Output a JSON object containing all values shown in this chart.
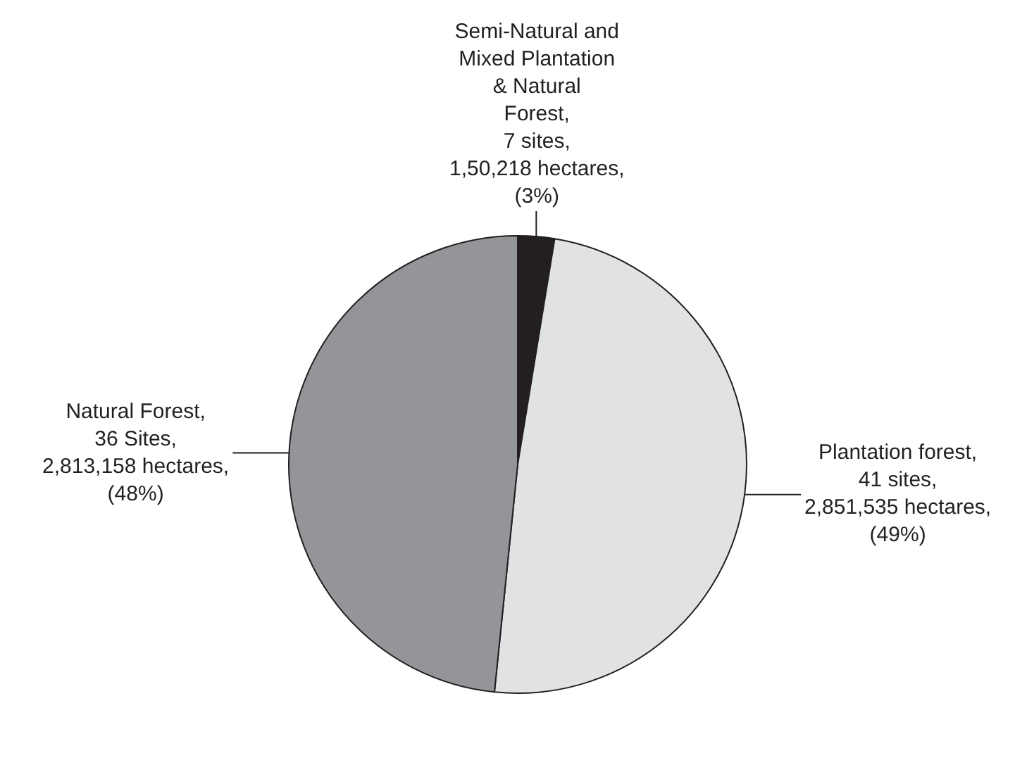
{
  "chart_data": {
    "type": "pie",
    "categories": [
      "Semi-Natural and Mixed Plantation & Natural Forest",
      "Plantation forest",
      "Natural Forest"
    ],
    "values": [
      150218,
      2851535,
      2813158
    ],
    "colors": [
      "#231f20",
      "#e1e2e4",
      "#939598"
    ],
    "value_labels": [
      ",\n7 sites,\n1,50,218 hectares,\n(3%)",
      ",\n41 sites,\n2,851,535 hectares,\n(49%)",
      ",\n36 Sites,\n2,813,158 hectares,\n(48%)"
    ]
  }
}
